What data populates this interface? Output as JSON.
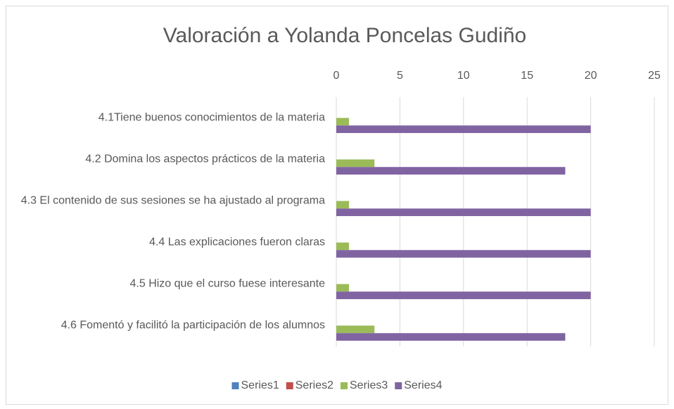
{
  "chart_data": {
    "type": "bar",
    "orientation": "horizontal",
    "title": "Valoración a Yolanda Poncelas Gudiño",
    "categories": [
      "4.1Tiene buenos conocimientos de la materia",
      "4.2 Domina los aspectos prácticos de la materia",
      "4.3 El contenido de sus sesiones se ha ajustado al programa",
      "4.4 Las explicaciones fueron claras",
      "4.5 Hizo que el curso fuese interesante",
      "4.6 Fomentó y facilitó la participación de los alumnos"
    ],
    "series": [
      {
        "name": "Series1",
        "color": "#4f81bd",
        "values": [
          0,
          0,
          0,
          0,
          0,
          0
        ]
      },
      {
        "name": "Series2",
        "color": "#c0504d",
        "values": [
          0,
          0,
          0,
          0,
          0,
          0
        ]
      },
      {
        "name": "Series3",
        "color": "#9bbb59",
        "values": [
          1,
          3,
          1,
          1,
          1,
          3
        ]
      },
      {
        "name": "Series4",
        "color": "#8064a2",
        "values": [
          20,
          18,
          20,
          20,
          20,
          18
        ]
      }
    ],
    "xlim": [
      0,
      25
    ],
    "xticks": [
      0,
      5,
      10,
      15,
      20,
      25
    ],
    "grid": true,
    "legend": "bottom"
  }
}
